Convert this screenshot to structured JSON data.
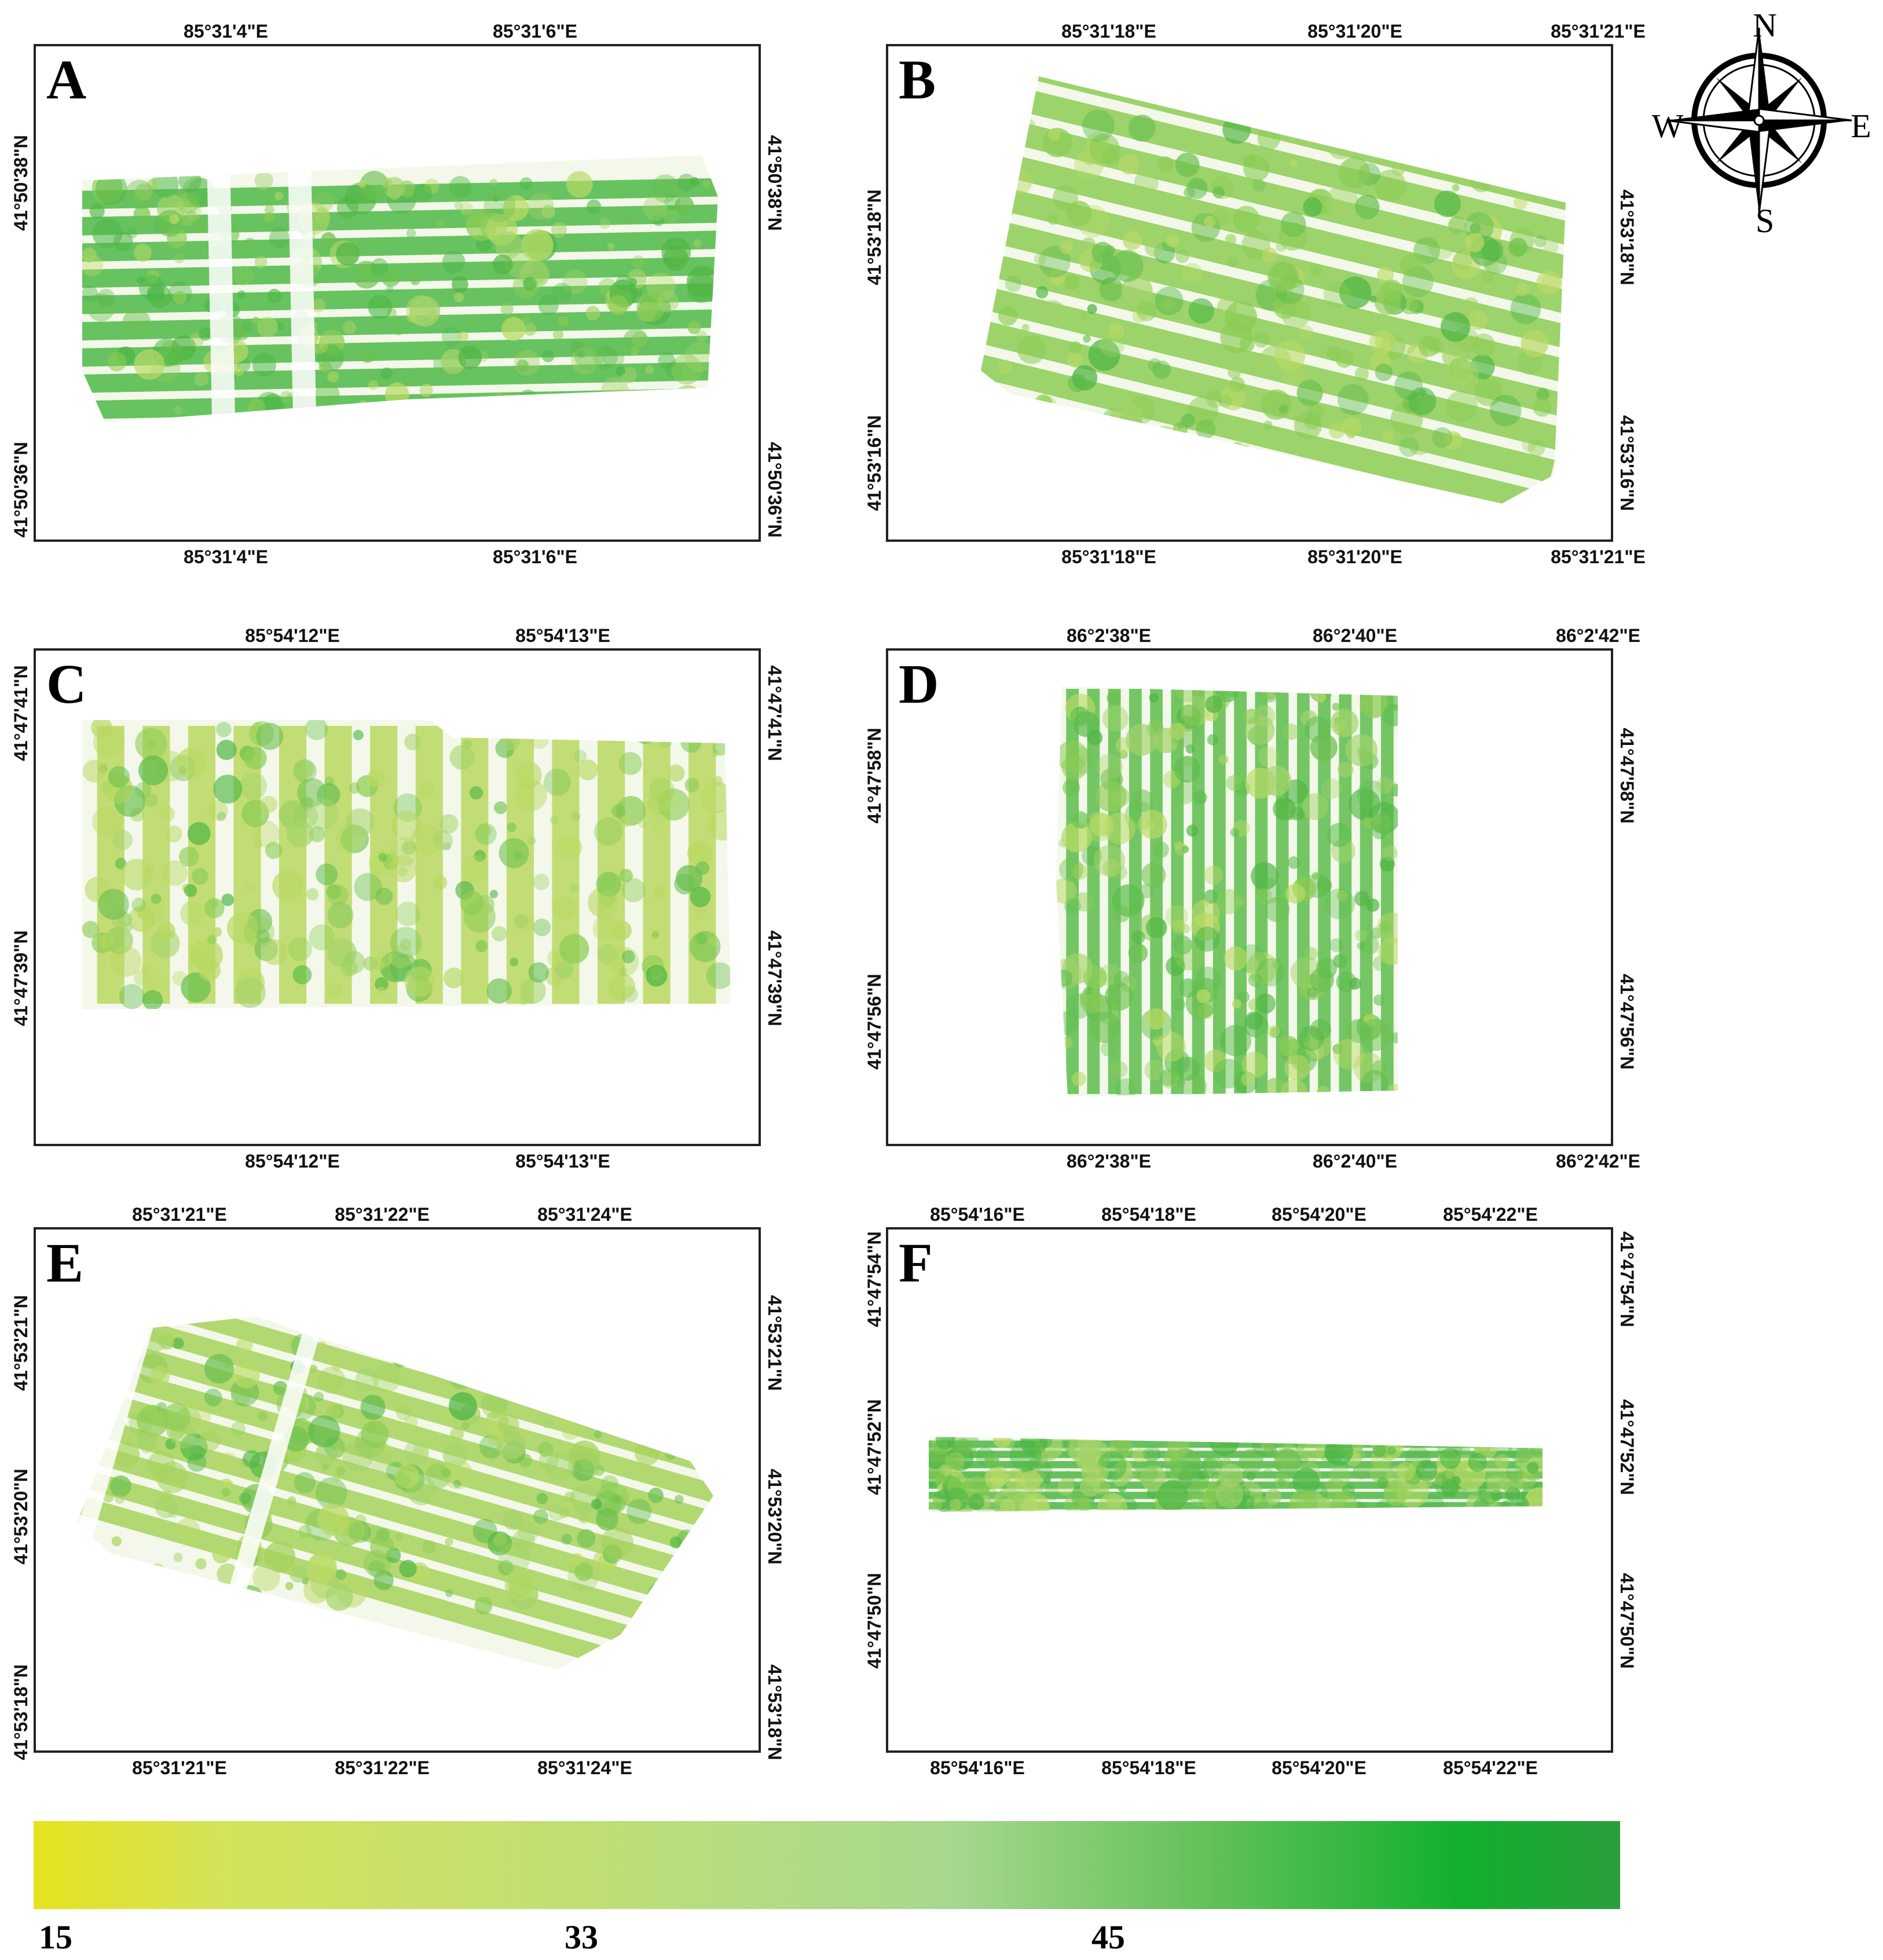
{
  "panels": [
    {
      "id": "A",
      "letter": "A",
      "shape": "rect",
      "lon_top": [
        "85°31'4\"E",
        "85°31'6\"E"
      ],
      "lon_bottom": [
        "85°31'4\"E",
        "85°31'6\"E"
      ],
      "lat_left": [
        "41°50'38\"N",
        "41°50'36\"N"
      ],
      "lat_right": [
        "41°50'38\"N",
        "41°50'36\"N"
      ],
      "dominant_color": "#4db848"
    },
    {
      "id": "B",
      "letter": "B",
      "shape": "tilted-rect",
      "lon_top": [
        "85°31'18\"E",
        "85°31'20\"E",
        "85°31'21\"E"
      ],
      "lon_bottom": [
        "85°31'18\"E",
        "85°31'20\"E",
        "85°31'21\"E"
      ],
      "lat_left": [
        "41°53'18\"N",
        "41°53'16\"N"
      ],
      "lat_right": [
        "41°53'18\"N",
        "41°53'16\"N"
      ],
      "dominant_color": "#8ccc55"
    },
    {
      "id": "C",
      "letter": "C",
      "shape": "rect",
      "lon_top": [
        "85°54'12\"E",
        "85°54'13\"E"
      ],
      "lon_bottom": [
        "85°54'12\"E",
        "85°54'13\"E"
      ],
      "lat_left": [
        "41°47'41\"N",
        "41°47'39\"N"
      ],
      "lat_right": [
        "41°47'41\"N",
        "41°47'39\"N"
      ],
      "dominant_color": "#b8d860"
    },
    {
      "id": "D",
      "letter": "D",
      "shape": "rect",
      "lon_top": [
        "86°2'38\"E",
        "86°2'40\"E",
        "86°2'42\"E"
      ],
      "lon_bottom": [
        "86°2'38\"E",
        "86°2'40\"E",
        "86°2'42\"E"
      ],
      "lat_left": [
        "41°47'58\"N",
        "41°47'56\"N"
      ],
      "lat_right": [
        "41°47'58\"N",
        "41°47'56\"N"
      ],
      "dominant_color": "#5dbd4e"
    },
    {
      "id": "E",
      "letter": "E",
      "shape": "tilted-rect",
      "lon_top": [
        "85°31'21\"E",
        "85°31'22\"E",
        "85°31'24\"E"
      ],
      "lon_bottom": [
        "85°31'21\"E",
        "85°31'22\"E",
        "85°31'24\"E"
      ],
      "lat_left": [
        "41°53'21\"N",
        "41°53'20\"N",
        "41°53'18\"N"
      ],
      "lat_right": [
        "41°53'21\"N",
        "41°53'20\"N",
        "41°53'18\"N"
      ],
      "dominant_color": "#a6d25c"
    },
    {
      "id": "F",
      "letter": "F",
      "shape": "strip",
      "lon_top": [
        "85°54'16\"E",
        "85°54'18\"E",
        "85°54'20\"E",
        "85°54'22\"E"
      ],
      "lon_bottom": [
        "85°54'16\"E",
        "85°54'18\"E",
        "85°54'20\"E",
        "85°54'22\"E"
      ],
      "lat_left": [
        "41°47'54\"N",
        "41°47'52\"N",
        "41°47'50\"N"
      ],
      "lat_right": [
        "41°47'54\"N",
        "41°47'52\"N",
        "41°47'50\"N"
      ],
      "dominant_color": "#4cb747"
    }
  ],
  "legend": {
    "labels": [
      "15",
      "33",
      "45"
    ],
    "gradient_colors": [
      "#e5e21f",
      "#d3e35a",
      "#bfdf75",
      "#a6d88f",
      "#6cc35f",
      "#12b02c",
      "#2a9e3e"
    ]
  },
  "compass": {
    "n": "N",
    "s": "S",
    "e": "E",
    "w": "W"
  }
}
